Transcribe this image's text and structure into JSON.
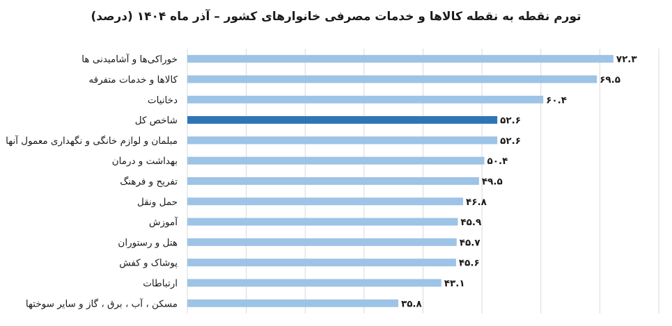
{
  "chart_data": {
    "type": "bar",
    "orientation": "horizontal",
    "title": "تورم نقطه به نقطه کالاها و خدمات مصرفی خانوارهای کشور – آذر ماه ۱۴۰۴ (درصد)",
    "xlabel": "",
    "ylabel": "",
    "categories": [
      "خوراکی‌ها و آشامیدنی ها",
      "کالاها و خدمات متفرقه",
      "دخانیات",
      "شاخص کل",
      "مبلمان و لوازم خانگی و نگهداری معمول آنها",
      "بهداشت و درمان",
      "تفریح و فرهنگ",
      "حمل ونقل",
      "آموزش",
      "هتل و رستوران",
      "پوشاک و کفش",
      "ارتباطات",
      "مسکن ، آب ، برق ، گاز و سایر سوختها"
    ],
    "values": [
      72.3,
      69.5,
      60.4,
      52.6,
      52.6,
      50.4,
      49.5,
      46.8,
      45.9,
      45.7,
      45.6,
      43.1,
      35.8
    ],
    "value_labels": [
      "۷۲.۳",
      "۶۹.۵",
      "۶۰.۴",
      "۵۲.۶",
      "۵۲.۶",
      "۵۰.۴",
      "۴۹.۵",
      "۴۶.۸",
      "۴۵.۹",
      "۴۵.۷",
      "۴۵.۶",
      "۴۳.۱",
      "۳۵.۸"
    ],
    "highlight_category": "شاخص کل",
    "xlim": [
      0,
      80
    ],
    "grid": true,
    "legend": "none",
    "colors": {
      "bar": "#9dc3e6",
      "highlight": "#2e75b6",
      "grid": "#d9d9d9"
    }
  }
}
